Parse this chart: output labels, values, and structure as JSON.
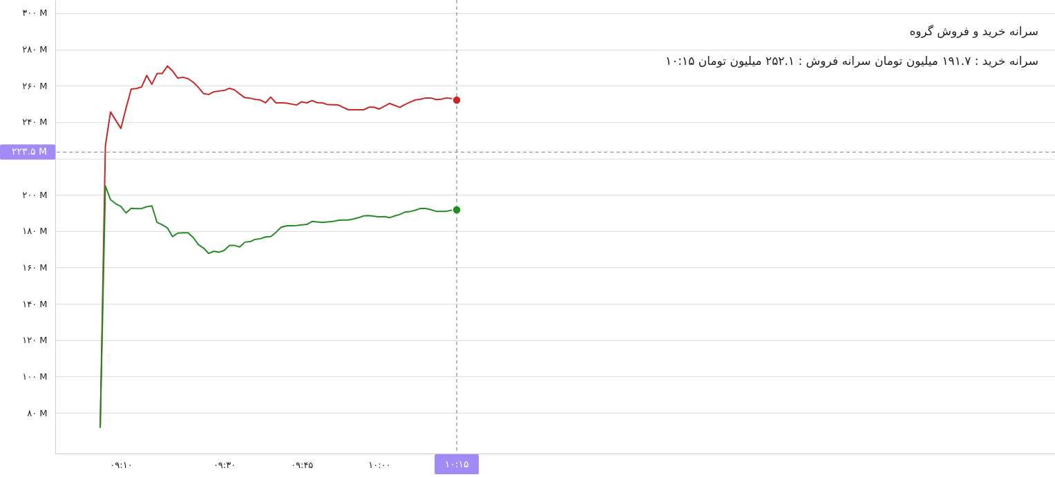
{
  "chart_data": {
    "type": "line",
    "title": "سرانه خرید و فروش گروه",
    "subtitle": "۱۰:۱۵ سرانه خرید : ۱۹۱.۷ میلیون تومان سرانه فروش : ۲۵۲.۱ میلیون تومان",
    "xlim": [
      8.955,
      12.18
    ],
    "ylim": [
      57.6,
      307.2
    ],
    "xticks": [
      {
        "value": 9.1667,
        "label": "۰۹:۱۰"
      },
      {
        "value": 9.5,
        "label": "۰۹:۳۰"
      },
      {
        "value": 9.75,
        "label": "۰۹:۴۵"
      },
      {
        "value": 10,
        "label": "۱۰:۰۰"
      }
    ],
    "yticks": [
      {
        "value": 80,
        "label": "۸۰ M"
      },
      {
        "value": 100,
        "label": "۱۰۰ M"
      },
      {
        "value": 120,
        "label": "۱۲۰ M"
      },
      {
        "value": 140,
        "label": "۱۴۰ M"
      },
      {
        "value": 160,
        "label": "۱۶۰ M"
      },
      {
        "value": 180,
        "label": "۱۸۰ M"
      },
      {
        "value": 200,
        "label": "۲۰۰ M"
      },
      {
        "value": 220,
        "label": null
      },
      {
        "value": 240,
        "label": "۲۴۰ M"
      },
      {
        "value": 260,
        "label": "۲۶۰ M"
      },
      {
        "value": 280,
        "label": "۲۸۰ M"
      },
      {
        "value": 300,
        "label": "۳۰۰ M"
      }
    ],
    "grid": "y",
    "series": [
      {
        "color": "#c62828",
        "x": [
          9.1,
          9.1167,
          9.1333,
          9.1667,
          9.1833,
          9.2,
          9.2167,
          9.2333,
          9.25,
          9.2667,
          9.2833,
          9.3,
          9.3167,
          9.3333,
          9.35,
          9.3667,
          9.3833,
          9.4,
          9.4167,
          9.4333,
          9.45,
          9.4667,
          9.4833,
          9.5,
          9.5167,
          9.5333,
          9.55,
          9.5667,
          9.5833,
          9.6,
          9.6167,
          9.6333,
          9.65,
          9.6667,
          9.6833,
          9.7,
          9.7333,
          9.75,
          9.7667,
          9.7833,
          9.8,
          9.8167,
          9.8333,
          9.8667,
          9.9,
          9.95,
          9.9667,
          9.9833,
          10,
          10.0333,
          10.0667,
          10.0833,
          10.1,
          10.1167,
          10.1333,
          10.15,
          10.1667,
          10.1833,
          10.2,
          10.2167,
          10.2333
        ],
        "values": [
          72,
          227.0,
          245.6,
          236.5,
          247.7,
          258.2,
          258.5,
          259.3,
          265.7,
          260.8,
          266.7,
          266.7,
          270.9,
          268.2,
          264.2,
          264.7,
          263.9,
          262.0,
          259.1,
          255.7,
          255.2,
          256.7,
          257.1,
          257.4,
          258.6,
          257.7,
          255.5,
          253.4,
          253.2,
          252.5,
          252.2,
          250.6,
          253.8,
          250.6,
          250.6,
          250.5,
          249.4,
          251.2,
          250.6,
          251.9,
          250.7,
          250.6,
          249.6,
          249.5,
          246.8,
          246.8,
          248.2,
          248.2,
          247.2,
          250.3,
          248.1,
          249.7,
          251.0,
          252.2,
          252.6,
          253.3,
          253.3,
          252.4,
          252.6,
          253.3,
          253.0
        ]
      },
      {
        "color": "#228b22",
        "x": [
          9.1,
          9.1167,
          9.1333,
          9.15,
          9.1667,
          9.1833,
          9.2,
          9.2167,
          9.2333,
          9.25,
          9.2667,
          9.2833,
          9.3,
          9.3167,
          9.3333,
          9.35,
          9.3667,
          9.3833,
          9.4,
          9.4167,
          9.4333,
          9.45,
          9.4667,
          9.4833,
          9.5,
          9.5167,
          9.5333,
          9.55,
          9.5667,
          9.5833,
          9.6,
          9.6167,
          9.6333,
          9.65,
          9.6667,
          9.6833,
          9.7,
          9.7333,
          9.75,
          9.7667,
          9.7833,
          9.8,
          9.8167,
          9.8333,
          9.85,
          9.8667,
          9.8833,
          9.9,
          9.9167,
          9.9333,
          9.95,
          9.9667,
          9.9833,
          10,
          10.0167,
          10.0333,
          10.05,
          10.0667,
          10.0833,
          10.1,
          10.1167,
          10.1333,
          10.15,
          10.1667,
          10.1833,
          10.2,
          10.2167,
          10.2333
        ],
        "values": [
          72,
          204.9,
          197.3,
          195.1,
          193.6,
          190.0,
          192.6,
          192.4,
          192.4,
          193.4,
          193.9,
          184.8,
          183.5,
          181.8,
          177.0,
          178.9,
          179.1,
          179.1,
          176.5,
          172.6,
          170.7,
          167.7,
          168.9,
          168.4,
          169.4,
          172.1,
          172.1,
          171.3,
          173.9,
          174.2,
          175.5,
          175.8,
          176.8,
          177.0,
          179.3,
          182.1,
          182.9,
          183.1,
          183.4,
          183.7,
          185.3,
          185.1,
          184.8,
          185.1,
          185.3,
          185.9,
          186.1,
          186.1,
          186.7,
          187.4,
          188.4,
          188.6,
          188.2,
          187.8,
          188.0,
          187.4,
          188.4,
          189.2,
          190.5,
          190.8,
          191.5,
          192.5,
          192.5,
          191.8,
          190.9,
          190.9,
          190.9,
          191.5
        ]
      },
      {
        "type": "scatter",
        "color": "#c62828",
        "x": [
          10.25
        ],
        "values": [
          252.1
        ]
      },
      {
        "type": "scatter",
        "color": "#228b22",
        "x": [
          10.25
        ],
        "values": [
          191.7
        ]
      }
    ],
    "ref_lines": [
      {
        "axis": "x",
        "value": 10.25,
        "label": "۱۰:۱۵",
        "color": "#777777",
        "line_style": "dashed"
      },
      {
        "axis": "y",
        "value": 223.5,
        "label": "۲۲۳.۵ M",
        "color": "#6b7f99",
        "line_style": "dashed"
      }
    ]
  }
}
